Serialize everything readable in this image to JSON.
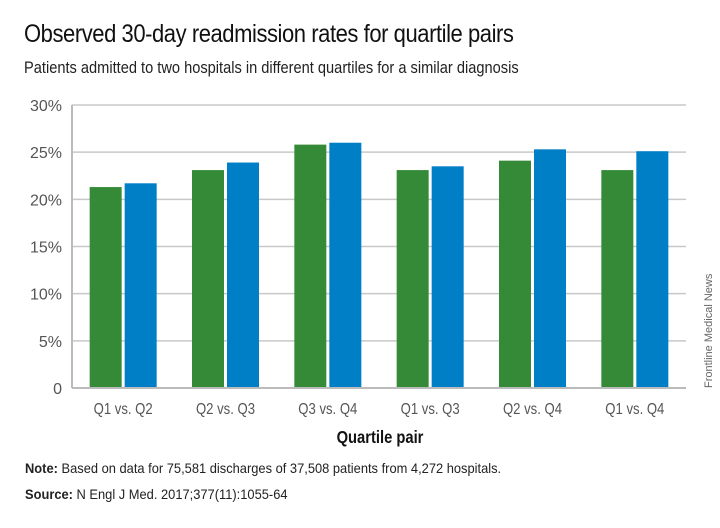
{
  "title": "Observed 30-day readmission rates for quartile pairs",
  "subtitle": "Patients admitted to two hospitals in different quartiles for a similar diagnosis",
  "note_label": "Note:",
  "note_text": " Based on data for 75,581 discharges of 37,508 patients from 4,272 hospitals.",
  "source_label": "Source:",
  "source_text": " N Engl J Med. 2017;377(11):1055-64",
  "credit": "Frontline Medical News",
  "colors": {
    "series1": "#358a37",
    "series2": "#007ec6"
  },
  "chart_data": {
    "type": "bar",
    "title": "Observed 30-day readmission rates for quartile pairs",
    "xlabel": "Quartile pair",
    "ylabel": "",
    "ylim": [
      0,
      30
    ],
    "yticks": [
      "0",
      "5%",
      "10%",
      "15%",
      "20%",
      "25%",
      "30%"
    ],
    "grid": true,
    "categories": [
      "Q1 vs. Q2",
      "Q2 vs. Q3",
      "Q3 vs. Q4",
      "Q1 vs. Q3",
      "Q2 vs. Q4",
      "Q1 vs. Q4"
    ],
    "series": [
      {
        "values": [
          21.3,
          23.1,
          25.8,
          23.1,
          24.1,
          23.1
        ]
      },
      {
        "values": [
          21.7,
          23.9,
          26.0,
          23.5,
          25.3,
          25.1
        ]
      }
    ]
  }
}
